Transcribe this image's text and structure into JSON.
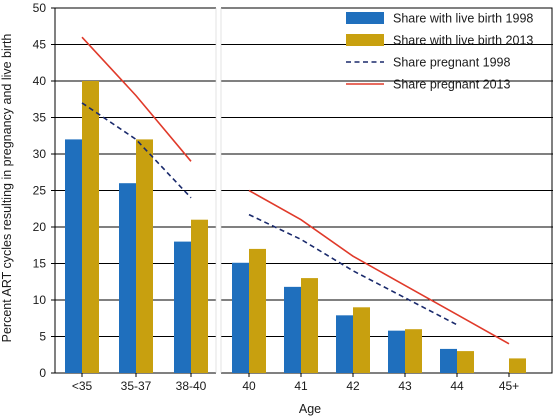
{
  "chart_data": {
    "type": "bar",
    "title": "",
    "xlabel": "Age",
    "ylabel": "Percent ART cycles resulting in pregnancy and live birth",
    "ylim": [
      0,
      50
    ],
    "yticks": [
      0,
      5,
      10,
      15,
      20,
      25,
      30,
      35,
      40,
      45,
      50
    ],
    "grid": true,
    "legend_position": "top-right",
    "categories": [
      "<35",
      "35-37",
      "38-40",
      "40",
      "41",
      "42",
      "43",
      "44",
      "45+"
    ],
    "panels": [
      {
        "categories": [
          "<35",
          "35-37",
          "38-40"
        ]
      },
      {
        "categories": [
          "40",
          "41",
          "42",
          "43",
          "44",
          "45+"
        ]
      }
    ],
    "series": [
      {
        "name": "Share with live birth 1998",
        "kind": "bar",
        "color": "#1f6fbd",
        "values": [
          32,
          26,
          18,
          15.1,
          11.8,
          7.9,
          5.8,
          3.3,
          null
        ]
      },
      {
        "name": "Share with live birth 2013",
        "kind": "bar",
        "color": "#c8a00f",
        "values": [
          40,
          32,
          21,
          17,
          13,
          9,
          6,
          3,
          2
        ]
      },
      {
        "name": "Share pregnant 1998",
        "kind": "line",
        "style": "dashed",
        "color": "#1a2a6c",
        "values": [
          37,
          32,
          24,
          21.7,
          18.3,
          14,
          10.3,
          6.6,
          null
        ]
      },
      {
        "name": "Share pregnant 2013",
        "kind": "line",
        "style": "solid",
        "color": "#e03a2a",
        "values": [
          46,
          38,
          29,
          25,
          21,
          16,
          12,
          8,
          4
        ]
      }
    ]
  }
}
